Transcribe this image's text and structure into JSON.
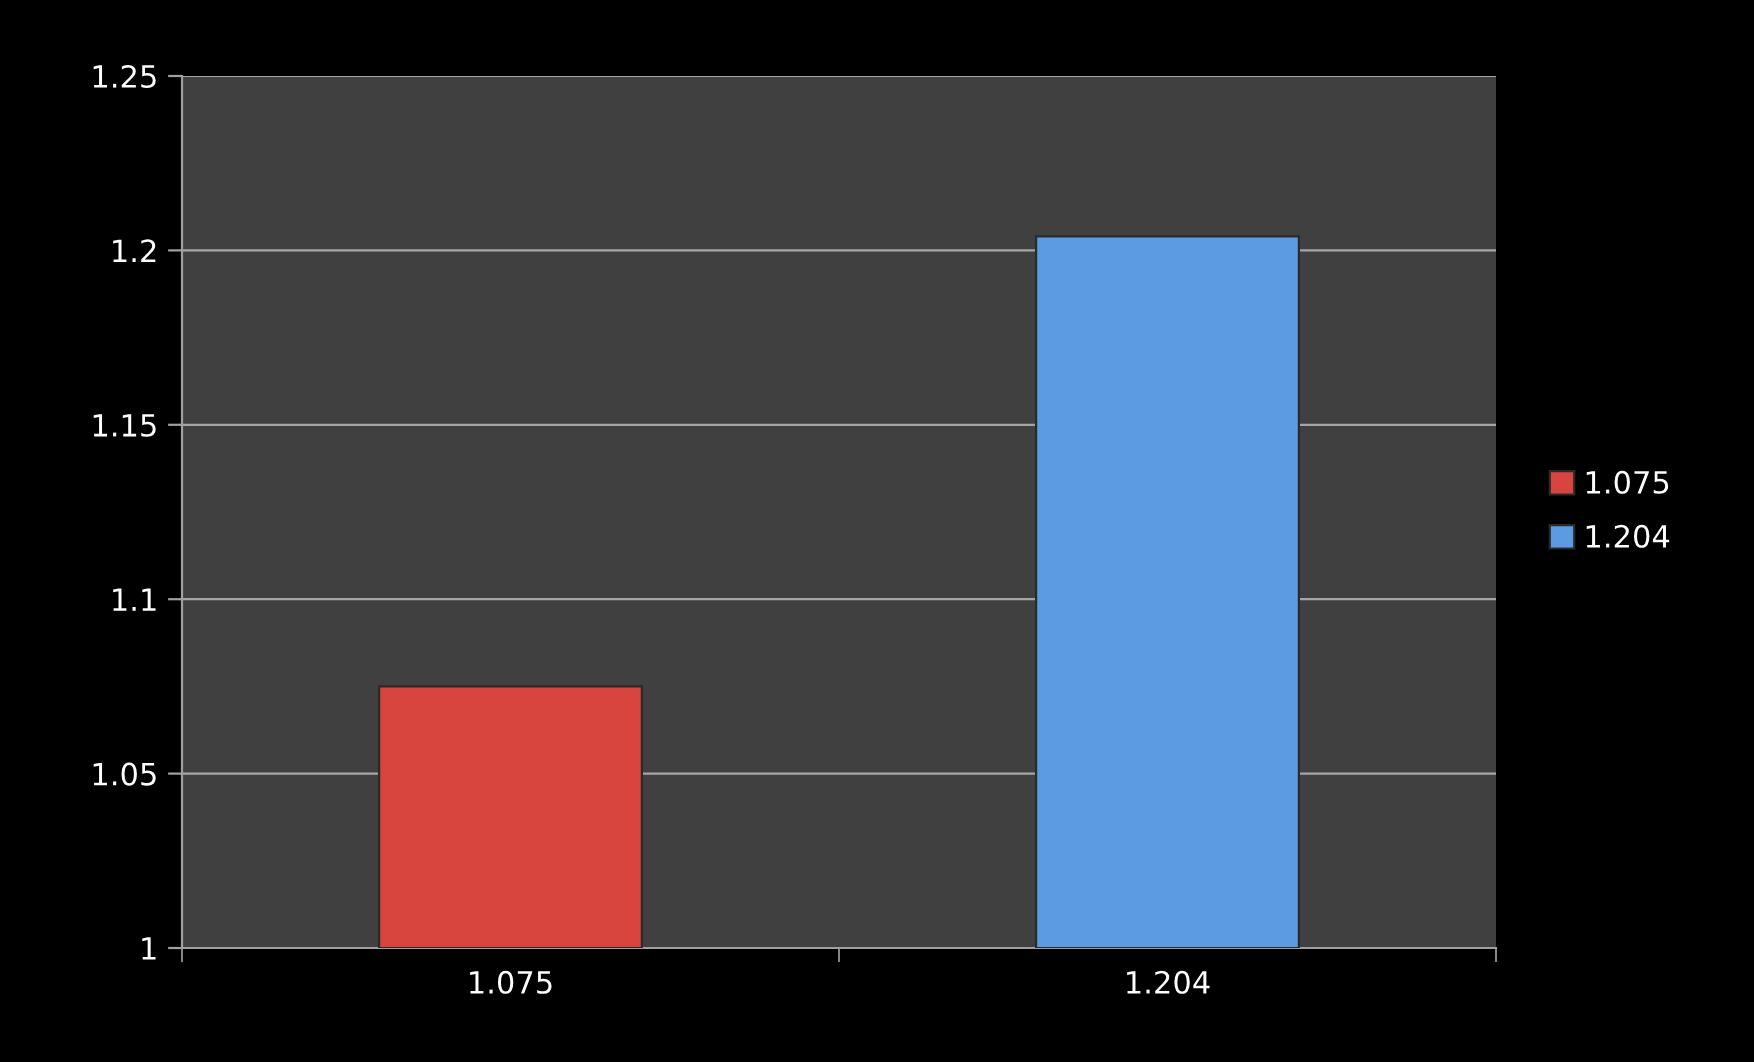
{
  "chart_data": {
    "type": "bar",
    "categories": [
      "1.075",
      "1.204"
    ],
    "series": [
      {
        "name": "1.075",
        "color": "#d8443e",
        "values": [
          1.075,
          null
        ]
      },
      {
        "name": "1.204",
        "color": "#5c9be2",
        "values": [
          null,
          1.204
        ]
      }
    ],
    "ylim": [
      1,
      1.25
    ],
    "yticks": [
      1,
      1.05,
      1.1,
      1.15,
      1.2,
      1.25
    ],
    "grid": "y",
    "legend": "right"
  }
}
